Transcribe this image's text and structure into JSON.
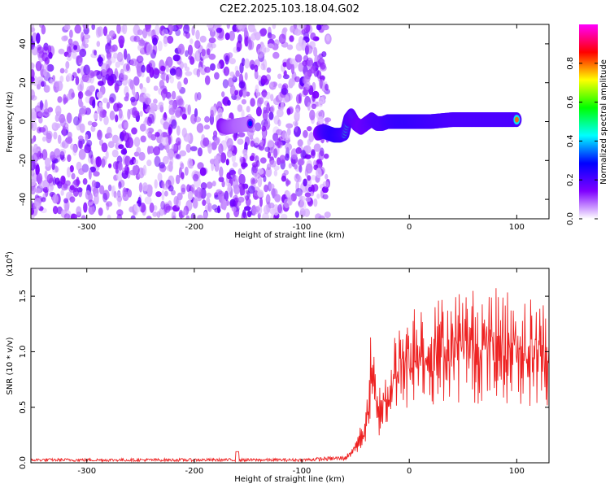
{
  "title": "C2E2.2025.103.18.04.G02",
  "chart_data": [
    {
      "type": "heatmap",
      "xlabel": "Height of straight line (km)",
      "ylabel": "Frequency (Hz)",
      "xlim": [
        -352,
        130
      ],
      "ylim": [
        -50,
        50
      ],
      "xticks": [
        -300,
        -200,
        -100,
        0,
        100
      ],
      "yticks": [
        -40,
        -20,
        0,
        20,
        40
      ],
      "colorbar": {
        "label": "Normalized spectral amplitude",
        "range": [
          0,
          1
        ],
        "ticks": [
          "0.0",
          "0.2",
          "0.4",
          "0.6",
          "0.8"
        ],
        "tick_values": [
          0.0,
          0.2,
          0.4,
          0.6,
          0.8
        ],
        "colors": [
          "#ffffff",
          "#7f00ff",
          "#0000ff",
          "#00ffff",
          "#00ff00",
          "#ffff00",
          "#ff0000",
          "#ff00ff"
        ]
      },
      "noise_region_x": [
        -352,
        -80
      ],
      "signal_track": [
        {
          "x": -175,
          "y": -2,
          "amp": 0.55
        },
        {
          "x": -170,
          "y": -3,
          "amp": 0.45
        },
        {
          "x": -160,
          "y": -2,
          "amp": 0.35
        },
        {
          "x": -148,
          "y": -1,
          "amp": 0.3
        },
        {
          "x": -85,
          "y": -6,
          "amp": 0.6
        },
        {
          "x": -80,
          "y": -5,
          "amp": 0.8
        },
        {
          "x": -75,
          "y": -6,
          "amp": 0.9
        },
        {
          "x": -70,
          "y": -7,
          "amp": 0.95
        },
        {
          "x": -64,
          "y": -7,
          "amp": 0.9
        },
        {
          "x": -60,
          "y": -6,
          "amp": 0.85
        },
        {
          "x": -57,
          "y": 1,
          "amp": 0.8
        },
        {
          "x": -54,
          "y": 3,
          "amp": 0.75
        },
        {
          "x": -50,
          "y": -1,
          "amp": 0.7
        },
        {
          "x": -45,
          "y": -3,
          "amp": 0.65
        },
        {
          "x": -40,
          "y": -1,
          "amp": 0.7
        },
        {
          "x": -35,
          "y": 1,
          "amp": 0.75
        },
        {
          "x": -30,
          "y": -1,
          "amp": 0.8
        },
        {
          "x": -25,
          "y": -1,
          "amp": 0.8
        },
        {
          "x": -20,
          "y": 0,
          "amp": 0.85
        },
        {
          "x": -10,
          "y": 0,
          "amp": 0.9
        },
        {
          "x": 0,
          "y": 0,
          "amp": 0.9
        },
        {
          "x": 20,
          "y": 0,
          "amp": 0.85
        },
        {
          "x": 40,
          "y": 1,
          "amp": 0.8
        },
        {
          "x": 60,
          "y": 1,
          "amp": 0.8
        },
        {
          "x": 80,
          "y": 1,
          "amp": 0.8
        },
        {
          "x": 100,
          "y": 1,
          "amp": 0.8
        },
        {
          "x": 130,
          "y": 1,
          "amp": 0.75
        }
      ]
    },
    {
      "type": "line",
      "xlabel": "Height of straight line (km)",
      "ylabel": "SNR (10 * v/v)",
      "y_multiplier_label": "(x10",
      "y_multiplier_exp": "4",
      "y_multiplier_close": ")",
      "xlim": [
        -352,
        130
      ],
      "ylim": [
        0,
        1.75
      ],
      "xticks": [
        -300,
        -200,
        -100,
        0,
        100
      ],
      "yticks": [
        "0.0",
        "0.5",
        "1.0",
        "1.5"
      ],
      "ytick_values": [
        0,
        0.5,
        1.0,
        1.5
      ],
      "color": "#ee2222",
      "envelope": [
        {
          "x": -352,
          "y": 0.03
        },
        {
          "x": -100,
          "y": 0.03
        },
        {
          "x": -60,
          "y": 0.05
        },
        {
          "x": -50,
          "y": 0.2
        },
        {
          "x": -40,
          "y": 0.45
        },
        {
          "x": -35,
          "y": 1.25
        },
        {
          "x": -30,
          "y": 0.6
        },
        {
          "x": -20,
          "y": 0.9
        },
        {
          "x": -10,
          "y": 1.2
        },
        {
          "x": 0,
          "y": 1.35
        },
        {
          "x": 10,
          "y": 1.45
        },
        {
          "x": 20,
          "y": 1.35
        },
        {
          "x": 30,
          "y": 1.45
        },
        {
          "x": 40,
          "y": 1.5
        },
        {
          "x": 60,
          "y": 1.5
        },
        {
          "x": 90,
          "y": 1.5
        },
        {
          "x": 110,
          "y": 1.45
        },
        {
          "x": 130,
          "y": 1.4
        }
      ]
    }
  ]
}
